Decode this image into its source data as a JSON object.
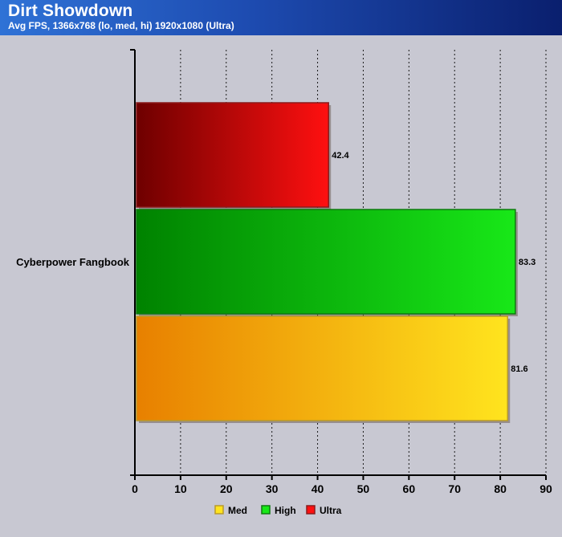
{
  "header": {
    "title": "Dirt Showdown",
    "subtitle": "Avg FPS, 1366x768 (lo, med, hi) 1920x1080 (Ultra)"
  },
  "colors": {
    "header_start": "#2f72d6",
    "header_end": "#0a1f6e",
    "plot_background": "#c8c8d2"
  },
  "chart_data": {
    "type": "bar",
    "orientation": "horizontal",
    "categories": [
      "Cyberpower Fangbook"
    ],
    "series": [
      {
        "name": "Ultra",
        "values": [
          42.4
        ],
        "color_dark": "#6e0000",
        "color_light": "#ff1010",
        "border": "#8a1c1c"
      },
      {
        "name": "High",
        "values": [
          83.3
        ],
        "color_dark": "#008200",
        "color_light": "#18e818",
        "border": "#0f7a0f"
      },
      {
        "name": "Med",
        "values": [
          81.6
        ],
        "color_dark": "#e88000",
        "color_light": "#ffe41e",
        "border": "#b89a2a"
      }
    ],
    "xlim": [
      0,
      90
    ],
    "xticks": [
      0,
      10,
      20,
      30,
      40,
      50,
      60,
      70,
      80,
      90
    ],
    "grid": "vertical dashed",
    "legend": {
      "placement": "bottom-center",
      "entries": [
        "Med",
        "High",
        "Ultra"
      ]
    }
  }
}
